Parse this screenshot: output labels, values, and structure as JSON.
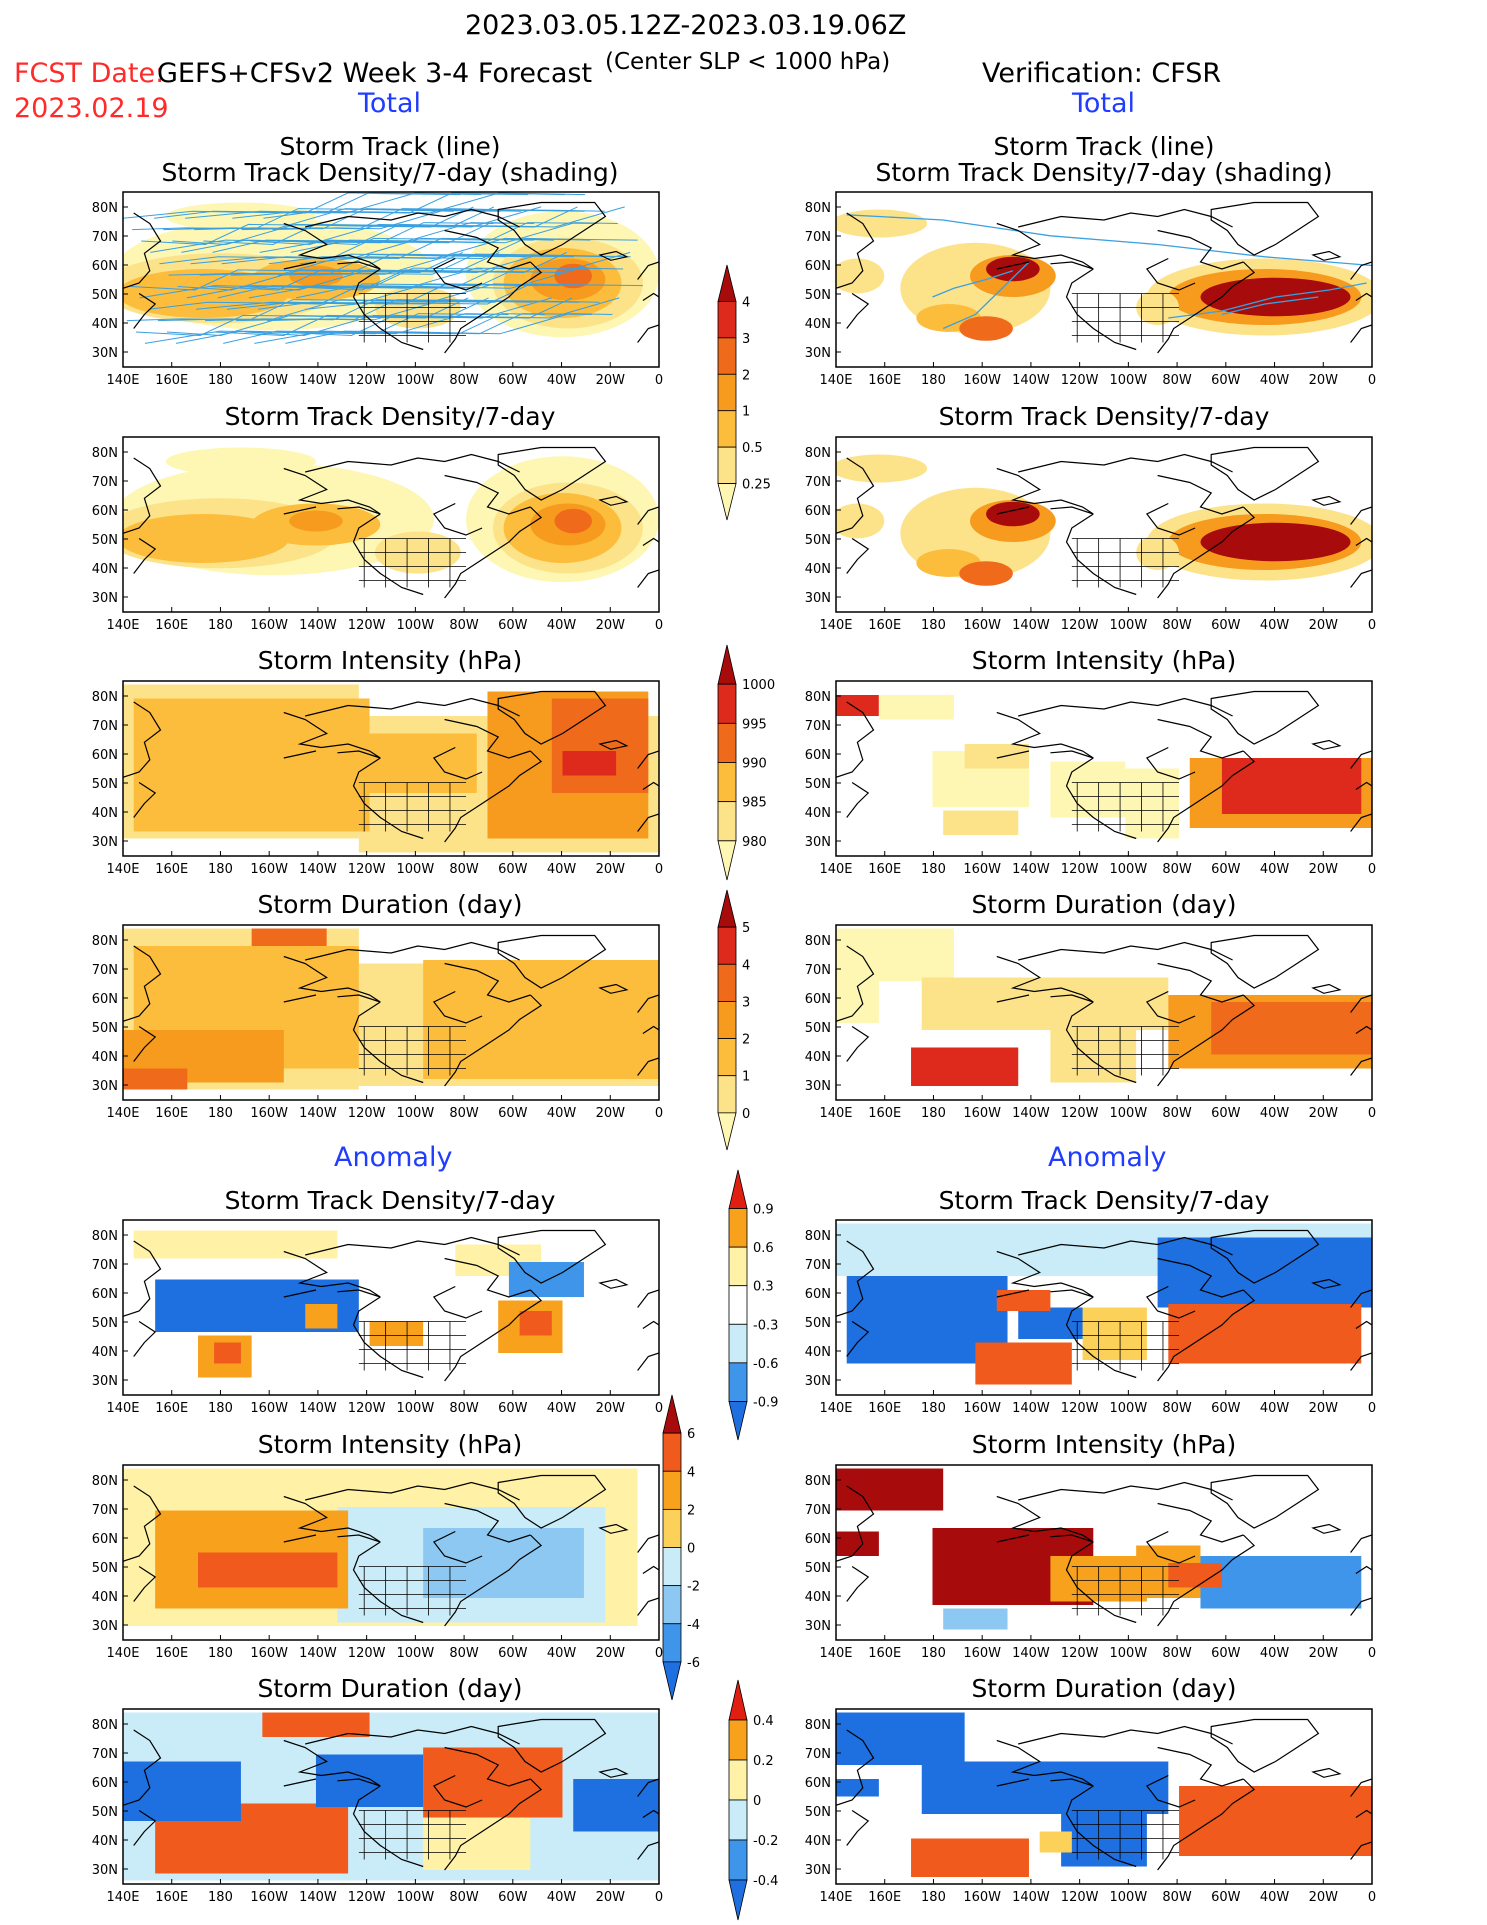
{
  "header": {
    "period": "2023.03.05.12Z-2023.03.19.06Z",
    "fcst_label": "FCST Date:",
    "fcst_date": "2023.02.19",
    "model": "GEFS+CFSv2 Week 3-4 Forecast",
    "criterion": "(Center SLP < 1000 hPa)",
    "verification": "Verification: CFSR"
  },
  "sections": {
    "total_left": "Total",
    "total_right": "Total",
    "anomaly_left": "Anomaly",
    "anomaly_right": "Anomaly"
  },
  "map_axes": {
    "lon_ticks": [
      "140E",
      "160E",
      "180",
      "160W",
      "140W",
      "120W",
      "100W",
      "80W",
      "60W",
      "40W",
      "20W",
      "0"
    ],
    "lat_ticks": [
      "80N",
      "70N",
      "60N",
      "50N",
      "40N",
      "30N"
    ]
  },
  "colors": {
    "total_scale": [
      "#fdf7b3",
      "#fce38a",
      "#fcbd3c",
      "#f79b1e",
      "#f06a1c",
      "#dd2a1c",
      "#a80b0b"
    ],
    "anomaly_scale": [
      "#1e6fe0",
      "#3e95ea",
      "#8cc8f1",
      "#c9ecf8",
      "#ffffff",
      "#fff2a6",
      "#fcd15a",
      "#f7a11d",
      "#f05a1c",
      "#e01f12",
      "#a80b0b"
    ],
    "track_line": "#3aa0e0"
  },
  "colorbars": [
    {
      "id": "density",
      "labels": [
        "4",
        "3",
        "2",
        "1",
        "0.5",
        "0.25"
      ]
    },
    {
      "id": "intensity",
      "labels": [
        "1000",
        "995",
        "990",
        "985",
        "980"
      ]
    },
    {
      "id": "duration",
      "labels": [
        "5",
        "4",
        "3",
        "2",
        "1",
        "0"
      ]
    },
    {
      "id": "density-anom",
      "labels": [
        "0.9",
        "0.6",
        "0.3",
        "-0.3",
        "-0.6",
        "-0.9"
      ]
    },
    {
      "id": "intensity-anom",
      "labels": [
        "6",
        "4",
        "2",
        "0",
        "-2",
        "-4",
        "-6"
      ]
    },
    {
      "id": "duration-anom",
      "labels": [
        "0.4",
        "0.2",
        "0",
        "-0.2",
        "-0.4"
      ]
    }
  ],
  "panels": [
    {
      "id": "fc-track",
      "title": "Storm Track (line)",
      "subtitle": "Storm Track Density/7-day (shading)"
    },
    {
      "id": "ob-track",
      "title": "Storm Track (line)",
      "subtitle": "Storm Track Density/7-day (shading)"
    },
    {
      "id": "fc-density",
      "title": "Storm Track Density/7-day"
    },
    {
      "id": "ob-density",
      "title": "Storm Track Density/7-day"
    },
    {
      "id": "fc-intensity",
      "title": "Storm Intensity (hPa)"
    },
    {
      "id": "ob-intensity",
      "title": "Storm Intensity (hPa)"
    },
    {
      "id": "fc-duration",
      "title": "Storm Duration (day)"
    },
    {
      "id": "ob-duration",
      "title": "Storm Duration (day)"
    },
    {
      "id": "fc-density-anom",
      "title": "Storm Track Density/7-day"
    },
    {
      "id": "ob-density-anom",
      "title": "Storm Track Density/7-day"
    },
    {
      "id": "fc-intensity-anom",
      "title": "Storm Intensity (hPa)"
    },
    {
      "id": "ob-intensity-anom",
      "title": "Storm Intensity (hPa)"
    },
    {
      "id": "fc-duration-anom",
      "title": "Storm Duration (day)"
    },
    {
      "id": "ob-duration-anom",
      "title": "Storm Duration (day)"
    }
  ],
  "chart_data": {
    "type": "heatmap",
    "description_fields": "Gridded storm statistics over 140E-0, 25N-85N",
    "x_range": [
      "140E",
      "0"
    ],
    "y_range": [
      "30N",
      "80N"
    ]
  }
}
